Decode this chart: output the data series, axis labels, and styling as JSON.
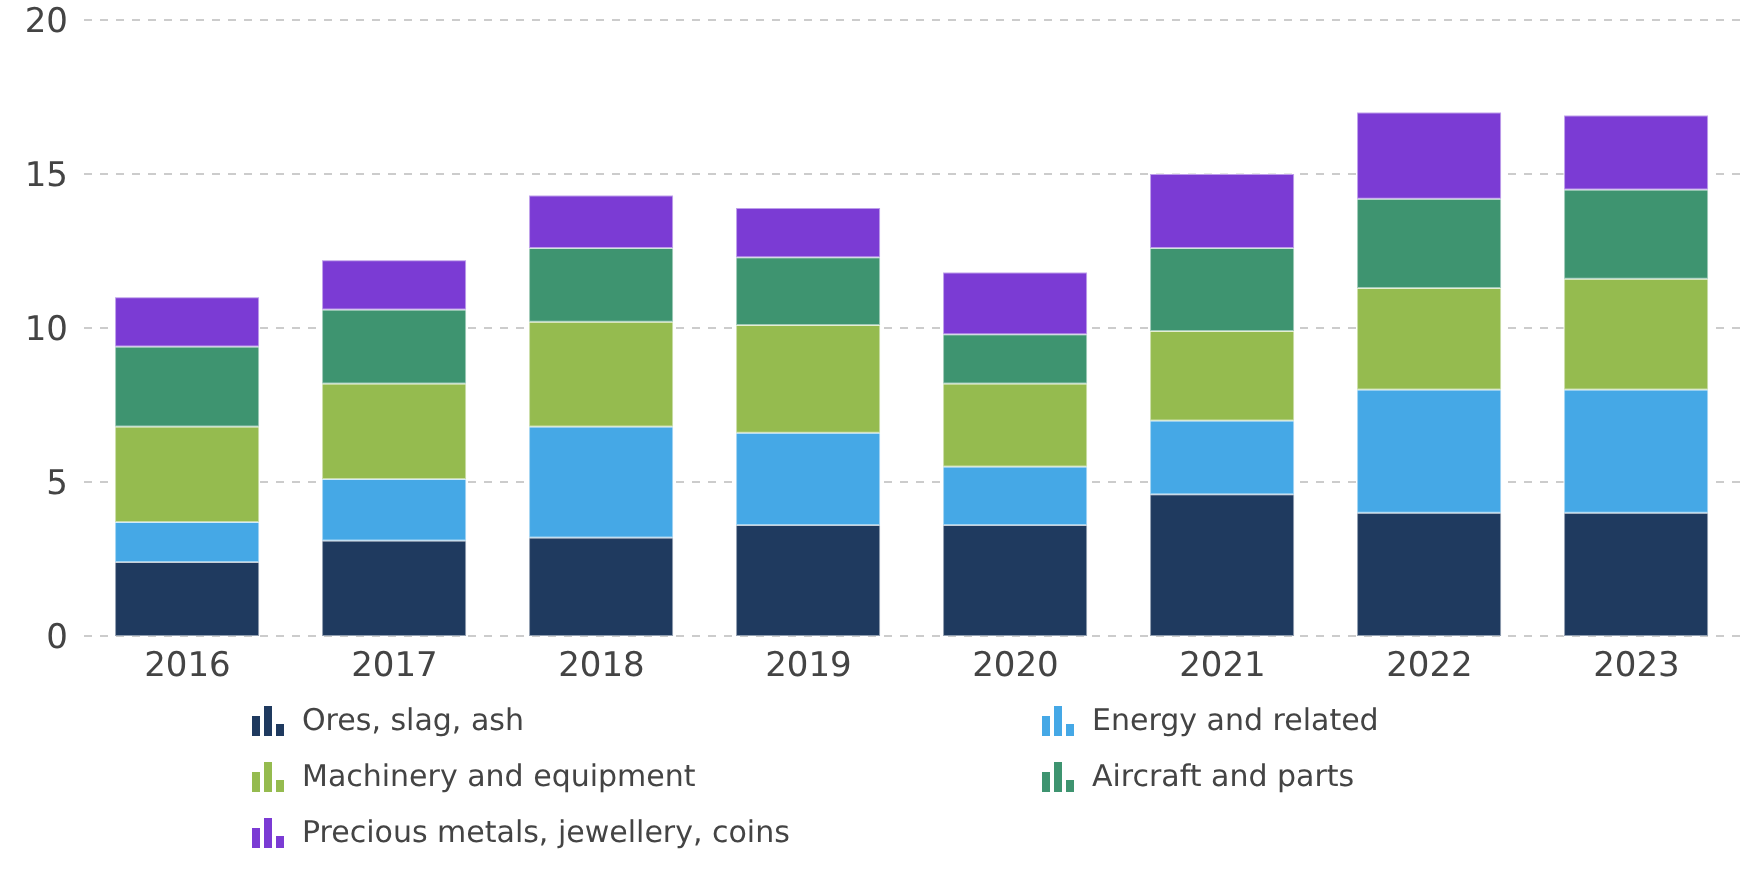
{
  "chart_data": {
    "type": "bar",
    "stacked": true,
    "categories": [
      "2016",
      "2017",
      "2018",
      "2019",
      "2020",
      "2021",
      "2022",
      "2023"
    ],
    "series": [
      {
        "name": "Ores, slag, ash",
        "color": "#1f3a5f",
        "values": [
          2.4,
          3.1,
          3.2,
          3.6,
          3.6,
          4.6,
          4.0,
          4.0
        ]
      },
      {
        "name": "Energy and related",
        "color": "#45a8e6",
        "values": [
          1.3,
          2.0,
          3.6,
          3.0,
          1.9,
          2.4,
          4.0,
          4.0
        ]
      },
      {
        "name": "Machinery and equipment",
        "color": "#95bb4f",
        "values": [
          3.1,
          3.1,
          3.4,
          3.5,
          2.7,
          2.9,
          3.3,
          3.6
        ]
      },
      {
        "name": "Aircraft and parts",
        "color": "#3e9470",
        "values": [
          2.6,
          2.4,
          2.4,
          2.2,
          1.6,
          2.7,
          2.9,
          2.9
        ]
      },
      {
        "name": "Precious metals, jewellery, coins",
        "color": "#7b3bd4",
        "values": [
          1.6,
          1.6,
          1.7,
          1.6,
          2.0,
          2.4,
          2.8,
          2.4
        ]
      }
    ],
    "ylim": [
      0,
      20
    ],
    "yticks": [
      0,
      5,
      10,
      15,
      20
    ],
    "grid": "y",
    "legend": "bottom"
  }
}
